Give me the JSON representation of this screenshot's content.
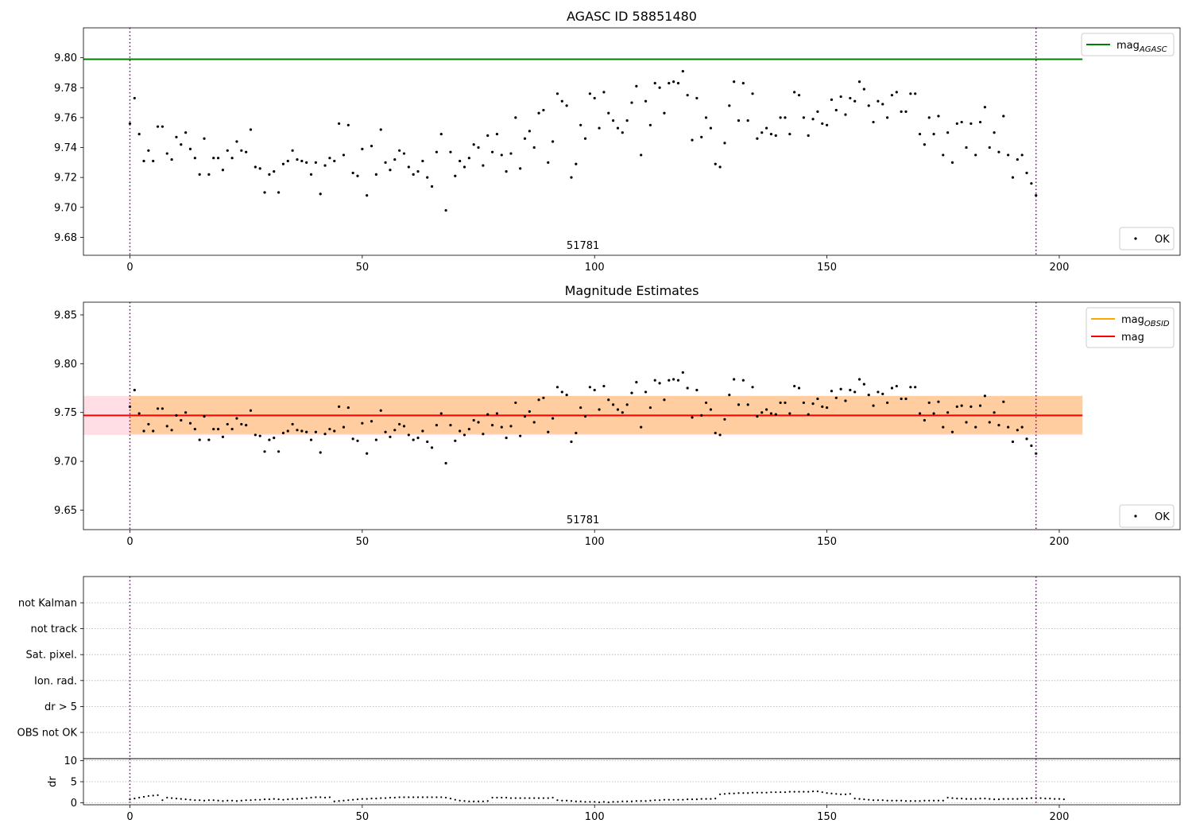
{
  "chart_data": [
    {
      "type": "scatter",
      "title": "AGASC ID 58851480",
      "xlim": [
        -10,
        226
      ],
      "ylim": [
        9.668,
        9.82
      ],
      "x_ticks": [
        0,
        50,
        100,
        150,
        200
      ],
      "y_ticks": [
        9.68,
        9.7,
        9.72,
        9.74,
        9.76,
        9.78,
        9.8
      ],
      "y_tick_labels": [
        "9.68",
        "9.70",
        "9.72",
        "9.74",
        "9.76",
        "9.78",
        "9.80"
      ],
      "grid": false,
      "obsid_label": "51781",
      "obsid_label_x": 97.5,
      "obs_bounds": [
        0,
        195
      ],
      "lines": [
        {
          "name": "mag_AGASC",
          "y": 9.799,
          "x0": -10,
          "x1": 205,
          "color": "#008000"
        }
      ],
      "series": [
        {
          "name": "OK",
          "color": "#000000",
          "y": [
            9.756,
            9.773,
            9.749,
            9.731,
            9.738,
            9.731,
            9.754,
            9.754,
            9.736,
            9.732,
            9.747,
            9.742,
            9.75,
            9.739,
            9.733,
            9.722,
            9.746,
            9.722,
            9.733,
            9.733,
            9.725,
            9.738,
            9.733,
            9.744,
            9.738,
            9.737,
            9.752,
            9.727,
            9.726,
            9.71,
            9.722,
            9.724,
            9.71,
            9.729,
            9.731,
            9.738,
            9.732,
            9.731,
            9.73,
            9.722,
            9.73,
            9.709,
            9.728,
            9.733,
            9.731,
            9.756,
            9.735,
            9.755,
            9.723,
            9.721,
            9.739,
            9.708,
            9.741,
            9.722,
            9.752,
            9.73,
            9.725,
            9.732,
            9.738,
            9.736,
            9.727,
            9.722,
            9.724,
            9.731,
            9.72,
            9.714,
            9.737,
            9.749,
            9.698,
            9.737,
            9.721,
            9.731,
            9.727,
            9.733,
            9.742,
            9.74,
            9.728,
            9.748,
            9.737,
            9.749,
            9.735,
            9.724,
            9.736,
            9.76,
            9.726,
            9.746,
            9.751,
            9.74,
            9.763,
            9.765,
            9.73,
            9.744,
            9.776,
            9.771,
            9.768,
            9.72,
            9.729,
            9.755,
            9.746,
            9.776,
            9.773,
            9.753,
            9.777,
            9.763,
            9.758,
            9.753,
            9.75,
            9.758,
            9.77,
            9.781,
            9.735,
            9.771,
            9.755,
            9.783,
            9.78,
            9.763,
            9.783,
            9.784,
            9.783,
            9.791,
            9.775,
            9.745,
            9.773,
            9.747,
            9.76,
            9.753,
            9.729,
            9.727,
            9.743,
            9.768,
            9.784,
            9.758,
            9.783,
            9.758,
            9.776,
            9.746,
            9.75,
            9.753,
            9.749,
            9.748,
            9.76,
            9.76,
            9.749,
            9.777,
            9.775,
            9.76,
            9.748,
            9.759,
            9.764,
            9.756,
            9.755,
            9.772,
            9.765,
            9.774,
            9.762,
            9.773,
            9.771,
            9.784,
            9.779,
            9.768,
            9.757,
            9.771,
            9.769,
            9.76,
            9.775,
            9.777,
            9.764,
            9.764,
            9.776,
            9.776,
            9.749,
            9.742,
            9.76,
            9.749,
            9.761,
            9.735,
            9.75,
            9.73,
            9.756,
            9.757,
            9.74,
            9.756,
            9.735,
            9.757,
            9.767,
            9.74,
            9.75,
            9.737,
            9.761,
            9.735,
            9.72,
            9.732,
            9.735,
            9.723,
            9.716,
            9.708
          ]
        }
      ],
      "legends": [
        {
          "placement": "top-right",
          "entries": [
            {
              "label": "mag",
              "sub": "AGASC",
              "marker": "line",
              "color": "#008000"
            }
          ]
        },
        {
          "placement": "bottom-right",
          "entries": [
            {
              "label": "OK",
              "sub": "",
              "marker": "dot",
              "color": "#000000"
            }
          ]
        }
      ]
    },
    {
      "type": "scatter",
      "title": "Magnitude Estimates",
      "xlim": [
        -10,
        226
      ],
      "ylim": [
        9.63,
        9.863
      ],
      "x_ticks": [
        0,
        50,
        100,
        150,
        200
      ],
      "y_ticks": [
        9.65,
        9.7,
        9.75,
        9.8,
        9.85
      ],
      "y_tick_labels": [
        "9.65",
        "9.70",
        "9.75",
        "9.80",
        "9.85"
      ],
      "grid": false,
      "obsid_label": "51781",
      "obsid_label_x": 97.5,
      "obs_bounds": [
        0,
        195
      ],
      "bands": [
        {
          "name": "mag range",
          "y0": 9.727,
          "y1": 9.767,
          "x0": -10,
          "x1": 205,
          "color": "#ffc0cb",
          "opacity": 0.5
        },
        {
          "name": "mag_OBSID range",
          "y0": 9.728,
          "y1": 9.767,
          "x0": 0,
          "x1": 205,
          "color": "#ffa500",
          "opacity": 0.3
        }
      ],
      "lines": [
        {
          "name": "mag_OBSID",
          "y": 9.747,
          "x0": 0,
          "x1": 205,
          "color": "#ffa500"
        },
        {
          "name": "mag",
          "y": 9.747,
          "x0": -10,
          "x1": 205,
          "color": "#ff0000"
        }
      ],
      "series": [
        {
          "name": "OK",
          "color": "#000000",
          "same_as_panel": 0
        }
      ],
      "legends": [
        {
          "placement": "top-right",
          "entries": [
            {
              "label": "mag",
              "sub": "OBSID",
              "marker": "line",
              "color": "#ffa500"
            },
            {
              "label": "mag",
              "sub": "",
              "marker": "line",
              "color": "#ff0000"
            }
          ]
        },
        {
          "placement": "bottom-right",
          "entries": [
            {
              "label": "OK",
              "sub": "",
              "marker": "dot",
              "color": "#000000"
            }
          ]
        }
      ]
    },
    {
      "type": "scatter",
      "title": "",
      "xlim": [
        -10,
        226
      ],
      "categories": [
        "not Kalman",
        "not track",
        "Sat. pixel.",
        "Ion. rad.",
        "dr > 5",
        "OBS not OK"
      ],
      "grid": true,
      "obs_bounds": [
        0,
        195
      ],
      "series": []
    },
    {
      "type": "scatter",
      "title": "",
      "xlim": [
        -10,
        226
      ],
      "ylim": [
        -0.5,
        10.5
      ],
      "x_ticks": [
        0,
        50,
        100,
        150,
        200
      ],
      "y_ticks": [
        0,
        5,
        10
      ],
      "y_tick_labels": [
        "0",
        "5",
        "10"
      ],
      "ylabel": "dr",
      "grid": true,
      "obs_bounds": [
        0,
        195
      ],
      "series": [
        {
          "name": "dr",
          "color": "#000000",
          "y": [
            0.8,
            1.0,
            1.2,
            1.4,
            1.6,
            1.7,
            1.8,
            0.6,
            1.2,
            1.1,
            1.0,
            0.9,
            0.8,
            0.7,
            0.6,
            0.6,
            0.5,
            0.6,
            0.6,
            0.5,
            0.4,
            0.5,
            0.5,
            0.4,
            0.5,
            0.6,
            0.6,
            0.7,
            0.7,
            0.8,
            0.8,
            0.9,
            0.8,
            0.7,
            0.8,
            0.9,
            0.9,
            1.0,
            1.1,
            1.2,
            1.3,
            1.3,
            1.2,
            1.3,
            0.3,
            0.4,
            0.5,
            0.6,
            0.7,
            0.8,
            0.9,
            0.9,
            1.0,
            1.0,
            1.1,
            1.1,
            1.2,
            1.2,
            1.3,
            1.3,
            1.3,
            1.3,
            1.3,
            1.3,
            1.3,
            1.3,
            1.3,
            1.3,
            1.2,
            1.0,
            0.7,
            0.5,
            0.4,
            0.3,
            0.3,
            0.3,
            0.3,
            0.4,
            1.2,
            1.2,
            1.2,
            1.2,
            1.1,
            1.1,
            1.1,
            1.1,
            1.1,
            1.1,
            1.1,
            1.1,
            1.1,
            1.2,
            0.6,
            0.5,
            0.5,
            0.4,
            0.3,
            0.3,
            0.2,
            0.2,
            0.2,
            0.1,
            0.2,
            0.1,
            0.2,
            0.2,
            0.3,
            0.3,
            0.3,
            0.4,
            0.4,
            0.4,
            0.5,
            0.6,
            0.6,
            0.7,
            0.7,
            0.7,
            0.7,
            0.7,
            0.8,
            0.8,
            0.8,
            0.9,
            0.9,
            0.9,
            1.0,
            2.0,
            2.1,
            2.2,
            2.2,
            2.3,
            2.3,
            2.3,
            2.4,
            2.4,
            2.4,
            2.4,
            2.5,
            2.5,
            2.5,
            2.5,
            2.6,
            2.6,
            2.6,
            2.6,
            2.6,
            2.7,
            2.7,
            2.5,
            2.3,
            2.2,
            2.1,
            2.0,
            2.0,
            2.1,
            1.0,
            0.9,
            0.8,
            0.7,
            0.6,
            0.6,
            0.6,
            0.5,
            0.5,
            0.5,
            0.5,
            0.4,
            0.4,
            0.4,
            0.4,
            0.5,
            0.5,
            0.5,
            0.5,
            0.5,
            1.2,
            1.1,
            1.0,
            1.0,
            0.9,
            0.9,
            0.9,
            1.0,
            1.0,
            0.9,
            0.8,
            0.8,
            0.9,
            0.9,
            0.9,
            0.9,
            1.0,
            1.0,
            1.1,
            1.1,
            1.1,
            1.0,
            1.0,
            0.9,
            0.9,
            0.8
          ]
        }
      ]
    }
  ]
}
